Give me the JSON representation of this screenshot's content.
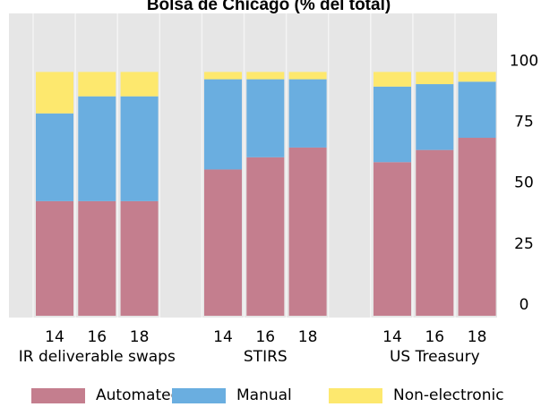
{
  "chart_data": {
    "type": "stacked_bar",
    "title": "Bolsa de Chicago (% del total)",
    "groups": [
      {
        "name": "IR deliverable swaps",
        "categories": [
          "14",
          "16",
          "18"
        ]
      },
      {
        "name": "STIRS",
        "categories": [
          "14",
          "16",
          "18"
        ]
      },
      {
        "name": "US Treasury",
        "categories": [
          "14",
          "16",
          "18"
        ]
      }
    ],
    "series": [
      {
        "name": "Automated",
        "color": "#c47e8e",
        "values": [
          47,
          47,
          47,
          60,
          65,
          69,
          63,
          68,
          73
        ]
      },
      {
        "name": "Manual",
        "color": "#6aaee0",
        "values": [
          36,
          43,
          43,
          37,
          32,
          28,
          31,
          27,
          23
        ]
      },
      {
        "name": "Non-electronic",
        "color": "#fde86e",
        "values": [
          17,
          10,
          10,
          3,
          3,
          3,
          6,
          5,
          4
        ]
      }
    ],
    "ylim": [
      0,
      124
    ],
    "yticks": [
      0,
      25,
      50,
      75,
      100
    ]
  }
}
